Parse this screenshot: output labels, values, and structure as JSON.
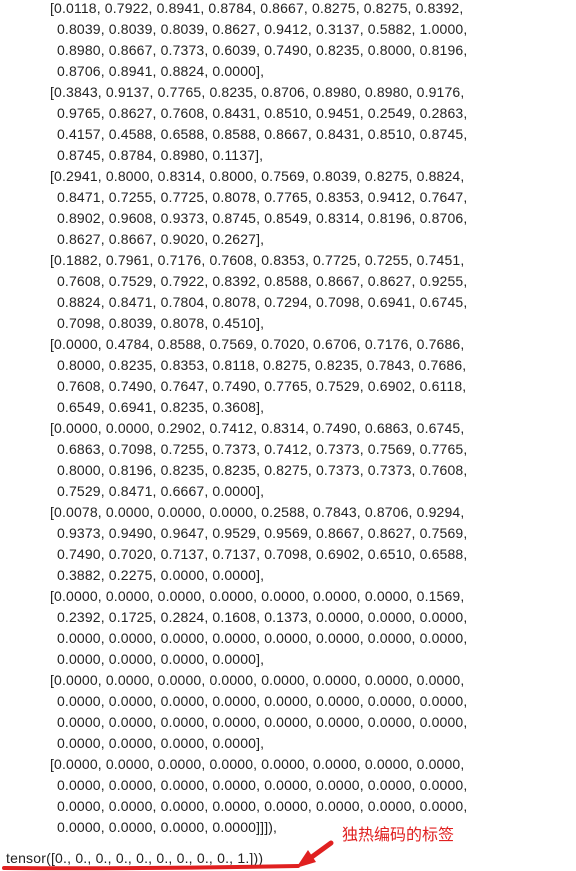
{
  "output": {
    "rows": [
      [
        "[0.0118, 0.7922, 0.8941, 0.8784, 0.8667, 0.8275, 0.8275, 0.8392,",
        "0.8039, 0.8039, 0.8039, 0.8627, 0.9412, 0.3137, 0.5882, 1.0000,",
        "0.8980, 0.8667, 0.7373, 0.6039, 0.7490, 0.8235, 0.8000, 0.8196,",
        "0.8706, 0.8941, 0.8824, 0.0000],"
      ],
      [
        "[0.3843, 0.9137, 0.7765, 0.8235, 0.8706, 0.8980, 0.8980, 0.9176,",
        "0.9765, 0.8627, 0.7608, 0.8431, 0.8510, 0.9451, 0.2549, 0.2863,",
        "0.4157, 0.4588, 0.6588, 0.8588, 0.8667, 0.8431, 0.8510, 0.8745,",
        "0.8745, 0.8784, 0.8980, 0.1137],"
      ],
      [
        "[0.2941, 0.8000, 0.8314, 0.8000, 0.7569, 0.8039, 0.8275, 0.8824,",
        "0.8471, 0.7255, 0.7725, 0.8078, 0.7765, 0.8353, 0.9412, 0.7647,",
        "0.8902, 0.9608, 0.9373, 0.8745, 0.8549, 0.8314, 0.8196, 0.8706,",
        "0.8627, 0.8667, 0.9020, 0.2627],"
      ],
      [
        "[0.1882, 0.7961, 0.7176, 0.7608, 0.8353, 0.7725, 0.7255, 0.7451,",
        "0.7608, 0.7529, 0.7922, 0.8392, 0.8588, 0.8667, 0.8627, 0.9255,",
        "0.8824, 0.8471, 0.7804, 0.8078, 0.7294, 0.7098, 0.6941, 0.6745,",
        "0.7098, 0.8039, 0.8078, 0.4510],"
      ],
      [
        "[0.0000, 0.4784, 0.8588, 0.7569, 0.7020, 0.6706, 0.7176, 0.7686,",
        "0.8000, 0.8235, 0.8353, 0.8118, 0.8275, 0.8235, 0.7843, 0.7686,",
        "0.7608, 0.7490, 0.7647, 0.7490, 0.7765, 0.7529, 0.6902, 0.6118,",
        "0.6549, 0.6941, 0.8235, 0.3608],"
      ],
      [
        "[0.0000, 0.0000, 0.2902, 0.7412, 0.8314, 0.7490, 0.6863, 0.6745,",
        "0.6863, 0.7098, 0.7255, 0.7373, 0.7412, 0.7373, 0.7569, 0.7765,",
        "0.8000, 0.8196, 0.8235, 0.8235, 0.8275, 0.7373, 0.7373, 0.7608,",
        "0.7529, 0.8471, 0.6667, 0.0000],"
      ],
      [
        "[0.0078, 0.0000, 0.0000, 0.0000, 0.2588, 0.7843, 0.8706, 0.9294,",
        "0.9373, 0.9490, 0.9647, 0.9529, 0.9569, 0.8667, 0.8627, 0.7569,",
        "0.7490, 0.7020, 0.7137, 0.7137, 0.7098, 0.6902, 0.6510, 0.6588,",
        "0.3882, 0.2275, 0.0000, 0.0000],"
      ],
      [
        "[0.0000, 0.0000, 0.0000, 0.0000, 0.0000, 0.0000, 0.0000, 0.1569,",
        "0.2392, 0.1725, 0.2824, 0.1608, 0.1373, 0.0000, 0.0000, 0.0000,",
        "0.0000, 0.0000, 0.0000, 0.0000, 0.0000, 0.0000, 0.0000, 0.0000,",
        "0.0000, 0.0000, 0.0000, 0.0000],"
      ],
      [
        "[0.0000, 0.0000, 0.0000, 0.0000, 0.0000, 0.0000, 0.0000, 0.0000,",
        "0.0000, 0.0000, 0.0000, 0.0000, 0.0000, 0.0000, 0.0000, 0.0000,",
        "0.0000, 0.0000, 0.0000, 0.0000, 0.0000, 0.0000, 0.0000, 0.0000,",
        "0.0000, 0.0000, 0.0000, 0.0000],"
      ],
      [
        "[0.0000, 0.0000, 0.0000, 0.0000, 0.0000, 0.0000, 0.0000, 0.0000,",
        "0.0000, 0.0000, 0.0000, 0.0000, 0.0000, 0.0000, 0.0000, 0.0000,",
        "0.0000, 0.0000, 0.0000, 0.0000, 0.0000, 0.0000, 0.0000, 0.0000,",
        "0.0000, 0.0000, 0.0000, 0.0000]]]),"
      ]
    ],
    "label_tensor": "tensor([0., 0., 0., 0., 0., 0., 0., 0., 0., 1.]))"
  },
  "annotation": {
    "text": "独热编码的标签",
    "color": "#e02020"
  }
}
